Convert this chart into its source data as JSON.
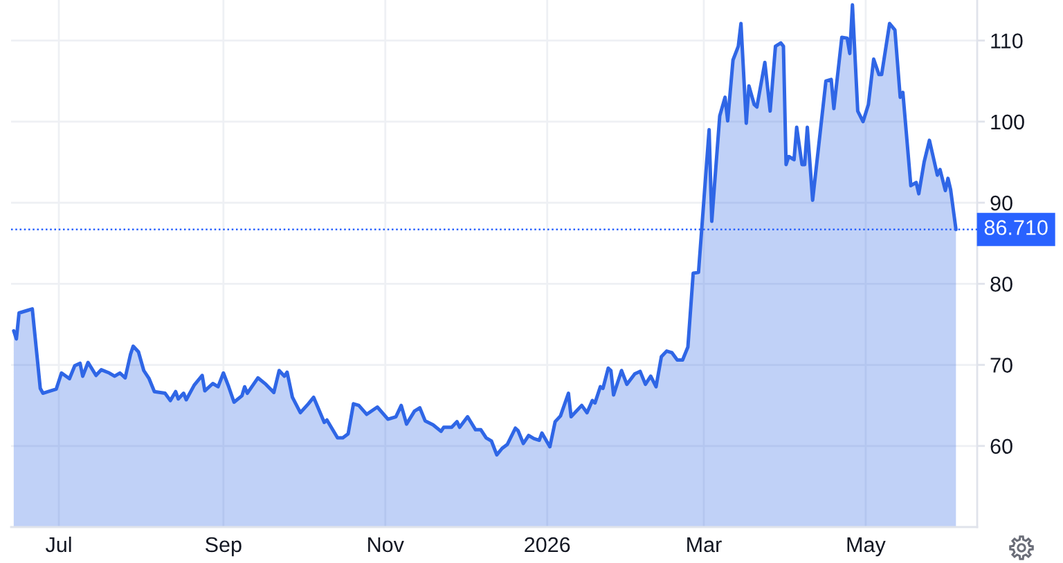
{
  "chart_data": {
    "type": "area",
    "color": "#2f66e6",
    "x": [
      "2025-06-14",
      "2025-06-15",
      "2025-06-16",
      "2025-06-19",
      "2025-06-21",
      "2025-06-24",
      "2025-06-25",
      "2025-06-27",
      "2025-06-30",
      "2025-07-02",
      "2025-07-05",
      "2025-07-07",
      "2025-07-09",
      "2025-07-10",
      "2025-07-12",
      "2025-07-15",
      "2025-07-17",
      "2025-07-20",
      "2025-07-22",
      "2025-07-24",
      "2025-07-26",
      "2025-07-28",
      "2025-07-29",
      "2025-07-31",
      "2025-08-02",
      "2025-08-04",
      "2025-08-06",
      "2025-08-10",
      "2025-08-12",
      "2025-08-14",
      "2025-08-15",
      "2025-08-17",
      "2025-08-18",
      "2025-08-21",
      "2025-08-24",
      "2025-08-25",
      "2025-08-28",
      "2025-08-30",
      "2025-09-01",
      "2025-09-03",
      "2025-09-05",
      "2025-09-08",
      "2025-09-09",
      "2025-09-10",
      "2025-09-14",
      "2025-09-17",
      "2025-09-20",
      "2025-09-22",
      "2025-09-24",
      "2025-09-25",
      "2025-09-27",
      "2025-09-30",
      "2025-10-03",
      "2025-10-05",
      "2025-10-09",
      "2025-10-10",
      "2025-10-14",
      "2025-10-16",
      "2025-10-18",
      "2025-10-20",
      "2025-10-22",
      "2025-10-25",
      "2025-10-29",
      "2025-11-02",
      "2025-11-05",
      "2025-11-07",
      "2025-11-09",
      "2025-11-12",
      "2025-11-14",
      "2025-11-16",
      "2025-11-19",
      "2025-11-22",
      "2025-11-23",
      "2025-11-26",
      "2025-11-28",
      "2025-11-29",
      "2025-12-02",
      "2025-12-05",
      "2025-12-07",
      "2025-12-09",
      "2025-12-11",
      "2025-12-13",
      "2025-12-15",
      "2025-12-17",
      "2025-12-20",
      "2025-12-21",
      "2025-12-23",
      "2025-12-25",
      "2025-12-27",
      "2025-12-29",
      "2025-12-30",
      "2026-01-02",
      "2026-01-04",
      "2026-01-06",
      "2026-01-09",
      "2026-01-10",
      "2026-01-14",
      "2026-01-16",
      "2026-01-18",
      "2026-01-19",
      "2026-01-21",
      "2026-01-22",
      "2026-01-24",
      "2026-01-25",
      "2026-01-26",
      "2026-01-29",
      "2026-01-31",
      "2026-02-03",
      "2026-02-05",
      "2026-02-07",
      "2026-02-09",
      "2026-02-11",
      "2026-02-13",
      "2026-02-15",
      "2026-02-17",
      "2026-02-19",
      "2026-02-21",
      "2026-02-23",
      "2026-02-25",
      "2026-02-27",
      "2026-03-03",
      "2026-03-04",
      "2026-03-07",
      "2026-03-09",
      "2026-03-10",
      "2026-03-12",
      "2026-03-14",
      "2026-03-15",
      "2026-03-17",
      "2026-03-18",
      "2026-03-20",
      "2026-03-21",
      "2026-03-24",
      "2026-03-26",
      "2026-03-28",
      "2026-03-30",
      "2026-03-31",
      "2026-04-01",
      "2026-04-02",
      "2026-04-04",
      "2026-04-05",
      "2026-04-07",
      "2026-04-08",
      "2026-04-09",
      "2026-04-11",
      "2026-04-16",
      "2026-04-18",
      "2026-04-19",
      "2026-04-22",
      "2026-04-24",
      "2026-04-25",
      "2026-04-26",
      "2026-04-28",
      "2026-04-30",
      "2026-05-02",
      "2026-05-04",
      "2026-05-06",
      "2026-05-07",
      "2026-05-10",
      "2026-05-12",
      "2026-05-14",
      "2026-05-15",
      "2026-05-18",
      "2026-05-20",
      "2026-05-21",
      "2026-05-23",
      "2026-05-25",
      "2026-05-28",
      "2026-05-29",
      "2026-05-31",
      "2026-06-01",
      "2026-06-02",
      "2026-06-04"
    ],
    "values": [
      74.2,
      73.2,
      76.4,
      76.7,
      76.9,
      67.1,
      66.5,
      66.7,
      67.0,
      69.0,
      68.3,
      69.9,
      70.2,
      68.6,
      70.3,
      68.7,
      69.4,
      69.0,
      68.6,
      69.0,
      68.4,
      71.3,
      72.3,
      71.6,
      69.3,
      68.3,
      66.7,
      66.5,
      65.6,
      66.7,
      65.8,
      66.5,
      65.7,
      67.5,
      68.7,
      66.8,
      67.7,
      67.3,
      69.0,
      67.3,
      65.4,
      66.2,
      67.3,
      66.5,
      68.4,
      67.6,
      66.6,
      69.3,
      68.6,
      69.1,
      66.0,
      64.1,
      65.2,
      66.0,
      62.9,
      63.2,
      61.0,
      61.0,
      61.5,
      65.2,
      65.0,
      63.9,
      64.8,
      63.3,
      63.6,
      65.0,
      62.7,
      64.3,
      64.7,
      63.1,
      62.6,
      61.8,
      62.3,
      62.3,
      63.0,
      62.3,
      63.6,
      62.0,
      62.0,
      61.0,
      60.6,
      58.9,
      59.7,
      60.2,
      62.2,
      61.9,
      60.3,
      61.3,
      60.9,
      60.7,
      61.6,
      59.9,
      63.0,
      63.7,
      66.5,
      63.6,
      65.0,
      64.1,
      65.6,
      65.3,
      67.3,
      67.1,
      69.6,
      69.3,
      66.3,
      69.3,
      67.6,
      68.9,
      69.2,
      67.6,
      68.6,
      67.3,
      71.0,
      71.7,
      71.5,
      70.6,
      70.6,
      72.2,
      81.3,
      81.4,
      99.0,
      87.7,
      100.7,
      103.0,
      100.1,
      107.6,
      109.3,
      112.1,
      99.8,
      104.4,
      102.1,
      101.8,
      107.3,
      101.3,
      109.3,
      109.7,
      109.3,
      94.7,
      95.7,
      95.3,
      99.3,
      94.7,
      94.7,
      99.3,
      90.3,
      105.0,
      105.2,
      101.6,
      110.4,
      110.3,
      108.4,
      114.4,
      101.3,
      100.0,
      102.1,
      107.7,
      105.8,
      105.8,
      112.1,
      111.3,
      103.0,
      103.6,
      92.1,
      92.5,
      91.1,
      95.0,
      97.7,
      93.4,
      94.1,
      91.5,
      93.0,
      91.6,
      86.7
    ],
    "xlim": [
      "2025-06-13",
      "2026-06-12"
    ],
    "xticks": [
      {
        "value": "2025-07-01",
        "label": "Jul"
      },
      {
        "value": "2025-09-01",
        "label": "Sep"
      },
      {
        "value": "2025-11-01",
        "label": "Nov"
      },
      {
        "value": "2026-01-01",
        "label": "2026"
      },
      {
        "value": "2026-03-01",
        "label": "Mar"
      },
      {
        "value": "2026-05-01",
        "label": "May"
      }
    ],
    "ylim": [
      50,
      115
    ],
    "yticks": [
      60,
      70,
      80,
      90,
      100,
      110
    ],
    "grid": true,
    "ref_lines": [
      {
        "axis": "y",
        "value": 86.71,
        "label": "86.710",
        "color": "#2962ff",
        "line_style": "dotted"
      }
    ]
  }
}
